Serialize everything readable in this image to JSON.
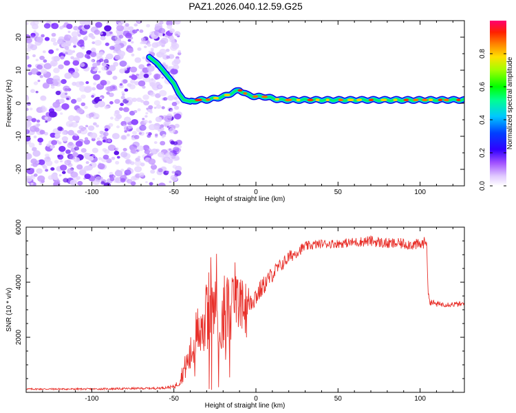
{
  "title": "PAZ1.2026.040.12.59.G25",
  "chart_data": [
    {
      "type": "heatmap",
      "name": "spectrogram",
      "xlabel": "Height of straight line (km)",
      "ylabel": "Frequency (Hz)",
      "xlim": [
        -140,
        127
      ],
      "ylim": [
        -25,
        25
      ],
      "xticks": [
        -100,
        -50,
        0,
        50,
        100
      ],
      "yticks": [
        -20,
        -10,
        0,
        10,
        20
      ],
      "noise_region_km": [
        -140,
        -48
      ],
      "ridge": {
        "x": [
          -65,
          -60,
          -55,
          -50,
          -47,
          -44,
          -40,
          -35,
          -30,
          -25,
          -20,
          -15,
          -10,
          -5,
          0,
          5,
          10,
          15,
          20,
          30,
          40,
          50,
          60,
          70,
          80,
          90,
          100,
          110,
          120,
          127
        ],
        "y": [
          14,
          12,
          9,
          6,
          3,
          1,
          0.5,
          1,
          1,
          1.5,
          2,
          3,
          4,
          2.5,
          2,
          2,
          1.5,
          1,
          1,
          1,
          1,
          1,
          1,
          1,
          1,
          1,
          1,
          1,
          1,
          1
        ]
      },
      "colorbar": {
        "label": "Normalized spectral amplitude",
        "ticks": [
          "0.0",
          "0.2",
          "0.4",
          "0.6",
          "0.8"
        ],
        "range": [
          0,
          1
        ]
      }
    },
    {
      "type": "line",
      "name": "snr",
      "xlabel": "Height of straight line (km)",
      "ylabel": "SNR (10 * v/v)",
      "xlim": [
        -140,
        127
      ],
      "ylim": [
        0,
        6000
      ],
      "xticks": [
        -100,
        -50,
        0,
        50,
        100
      ],
      "yticks": [
        2000,
        4000,
        6000
      ],
      "series": [
        {
          "name": "SNR",
          "color": "#e8302a",
          "x": [
            -140,
            -100,
            -60,
            -50,
            -47,
            -44,
            -40,
            -37,
            -35,
            -30,
            -25,
            -20,
            -15,
            -10,
            -5,
            0,
            5,
            10,
            15,
            20,
            25,
            30,
            40,
            50,
            60,
            70,
            80,
            90,
            100,
            104,
            105,
            106,
            110,
            120,
            127
          ],
          "y": [
            120,
            120,
            150,
            200,
            350,
            800,
            1300,
            1900,
            2400,
            2700,
            3000,
            2900,
            3100,
            3200,
            3300,
            3500,
            3900,
            4300,
            4600,
            4900,
            5100,
            5300,
            5400,
            5400,
            5450,
            5500,
            5400,
            5400,
            5350,
            5500,
            3500,
            3300,
            3200,
            3200,
            3200
          ],
          "noise": [
            30,
            30,
            40,
            60,
            150,
            400,
            700,
            900,
            1100,
            1300,
            1300,
            1400,
            1300,
            1000,
            600,
            400,
            350,
            300,
            250,
            250,
            200,
            180,
            160,
            160,
            180,
            200,
            200,
            200,
            220,
            200,
            150,
            120,
            100,
            100,
            100
          ]
        }
      ]
    }
  ],
  "colors": {
    "colormap": [
      "#ffffff",
      "#d8b8ff",
      "#8a2be2",
      "#5000ff",
      "#0000ff",
      "#00c8ff",
      "#00ff80",
      "#00ff00",
      "#c8ff00",
      "#ffff00",
      "#ff8000",
      "#ff0000",
      "#ff0060"
    ],
    "axis": "#000000"
  }
}
